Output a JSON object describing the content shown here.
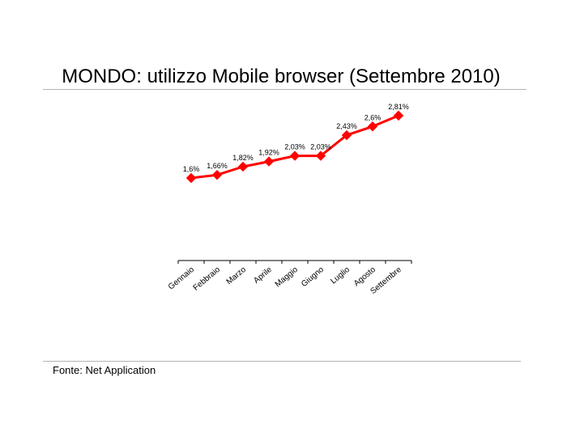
{
  "title": "MONDO: utilizzo Mobile browser (Settembre 2010)",
  "source": "Fonte: Net Application",
  "colors": {
    "series": "#ff0000",
    "axis": "#000000",
    "rule": "#b3b3b3"
  },
  "chart_data": {
    "type": "line",
    "categories": [
      "Gennaio",
      "Febbraio",
      "Marzo",
      "Aprile",
      "Maggio",
      "Giugno",
      "Luglio",
      "Agosto",
      "Settembre"
    ],
    "series": [
      {
        "values": [
          1.6,
          1.66,
          1.82,
          1.92,
          2.03,
          2.03,
          2.43,
          2.6,
          2.81
        ],
        "labels": [
          "1,6%",
          "1,66%",
          "1,82%",
          "1,92%",
          "2,03%",
          "2,03%",
          "2,43%",
          "2,6%",
          "2,81%"
        ],
        "color": "#ff0000",
        "marker": "diamond"
      }
    ],
    "title": "",
    "xlabel": "",
    "ylabel": "",
    "ylim": [
      0,
      3.2
    ],
    "y_axis_visible": false,
    "grid": false,
    "legend": "none"
  }
}
